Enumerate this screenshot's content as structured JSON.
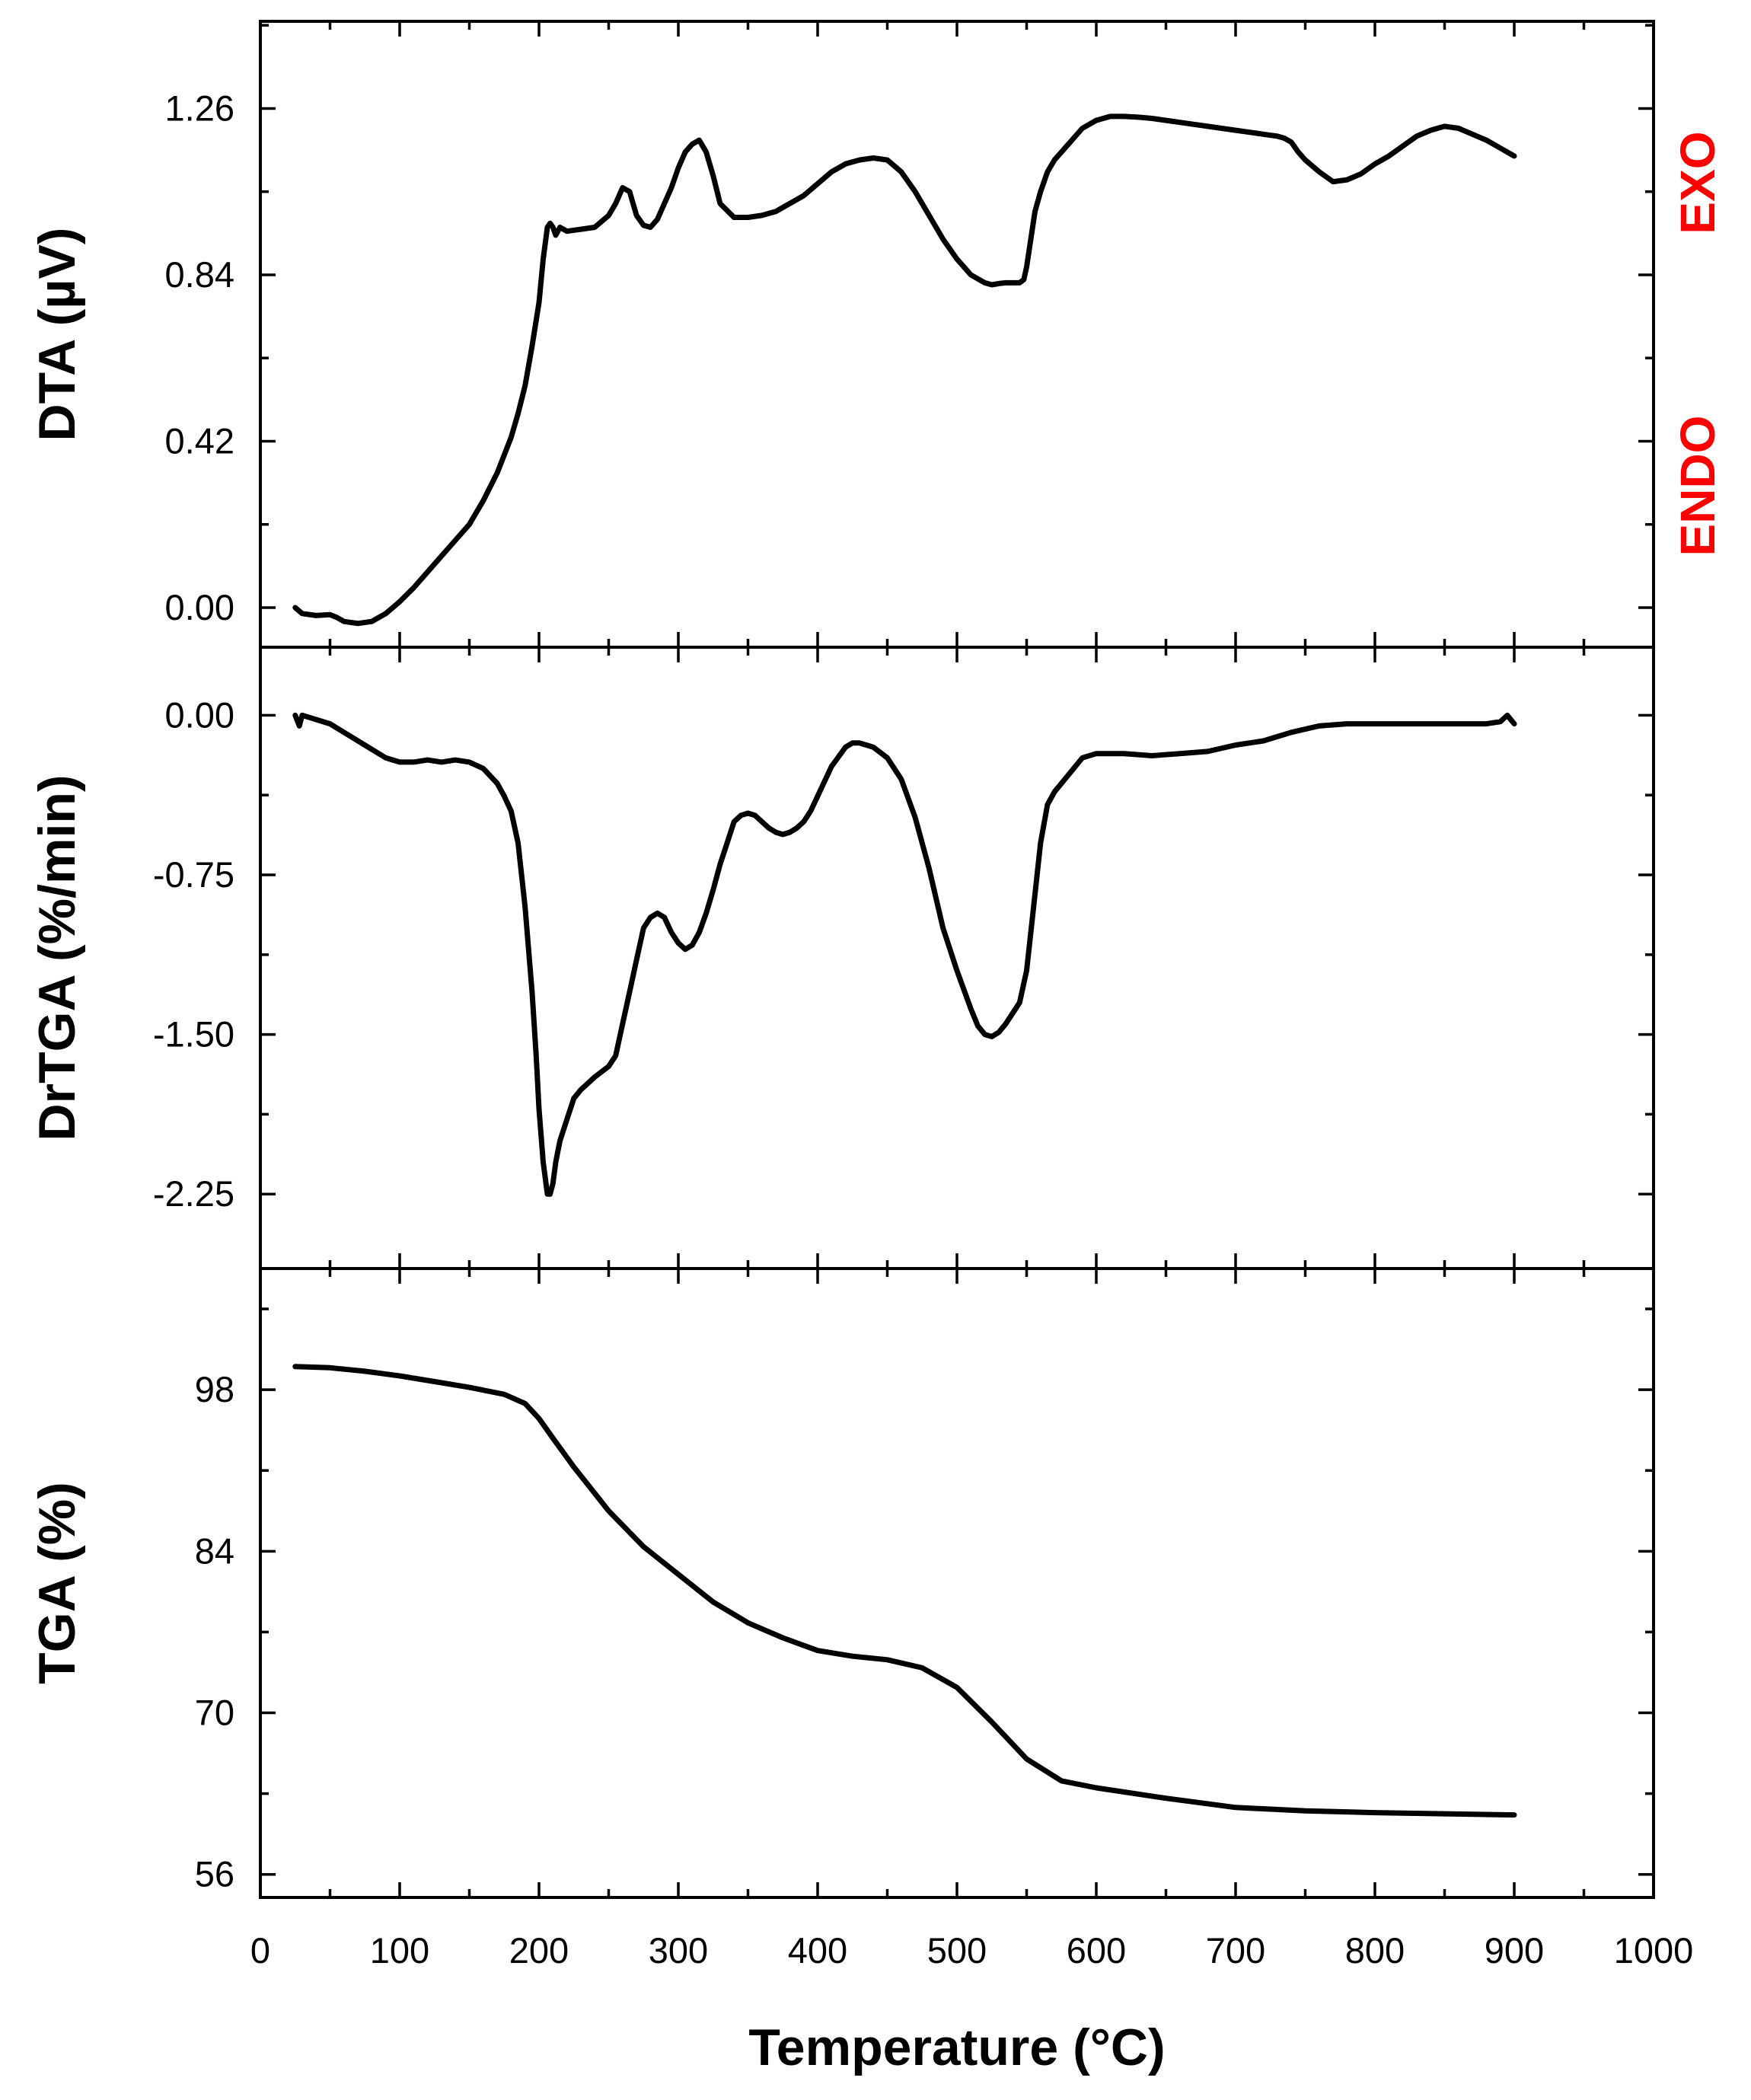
{
  "chart_data": [
    {
      "type": "line",
      "panel": "top",
      "ylabel": "DTA (µV)",
      "xlim": [
        0,
        1000
      ],
      "ylim": [
        -0.1,
        1.48
      ],
      "yticks": [
        "0.00",
        "0.42",
        "0.84",
        "1.26"
      ],
      "ytick_values": [
        0,
        0.42,
        0.84,
        1.26
      ],
      "annotations": [
        "EXO",
        "ENDO"
      ],
      "annotation_color": "#ff0000",
      "series": [
        {
          "x": [
            25,
            30,
            40,
            50,
            55,
            60,
            70,
            80,
            90,
            100,
            110,
            120,
            130,
            140,
            150,
            160,
            170,
            180,
            185,
            190,
            195,
            200,
            203,
            206,
            208,
            210,
            212,
            215,
            220,
            230,
            240,
            250,
            255,
            260,
            265,
            270,
            275,
            280,
            285,
            290,
            295,
            300,
            305,
            310,
            315,
            320,
            325,
            330,
            340,
            350,
            360,
            370,
            380,
            390,
            400,
            410,
            420,
            430,
            440,
            450,
            460,
            470,
            480,
            490,
            500,
            510,
            520,
            525,
            530,
            535,
            540,
            545,
            548,
            550,
            553,
            556,
            560,
            565,
            570,
            580,
            590,
            600,
            610,
            620,
            630,
            640,
            650,
            660,
            670,
            680,
            690,
            700,
            710,
            720,
            730,
            735,
            740,
            745,
            750,
            760,
            770,
            780,
            790,
            800,
            810,
            820,
            830,
            840,
            850,
            860,
            870,
            880,
            890,
            900
          ],
          "y": [
            0.0,
            -0.015,
            -0.02,
            -0.018,
            -0.025,
            -0.035,
            -0.04,
            -0.035,
            -0.015,
            0.015,
            0.05,
            0.09,
            0.13,
            0.17,
            0.21,
            0.27,
            0.34,
            0.43,
            0.49,
            0.56,
            0.66,
            0.77,
            0.88,
            0.96,
            0.97,
            0.96,
            0.94,
            0.96,
            0.95,
            0.955,
            0.96,
            0.99,
            1.02,
            1.06,
            1.05,
            0.99,
            0.965,
            0.96,
            0.98,
            1.02,
            1.06,
            1.11,
            1.15,
            1.17,
            1.18,
            1.15,
            1.09,
            1.02,
            0.985,
            0.985,
            0.99,
            1.0,
            1.02,
            1.04,
            1.07,
            1.1,
            1.12,
            1.13,
            1.135,
            1.13,
            1.1,
            1.05,
            0.99,
            0.93,
            0.88,
            0.84,
            0.82,
            0.815,
            0.818,
            0.82,
            0.82,
            0.82,
            0.828,
            0.86,
            0.93,
            1.0,
            1.05,
            1.1,
            1.13,
            1.17,
            1.21,
            1.23,
            1.24,
            1.24,
            1.238,
            1.235,
            1.23,
            1.225,
            1.22,
            1.215,
            1.21,
            1.205,
            1.2,
            1.195,
            1.19,
            1.185,
            1.175,
            1.15,
            1.13,
            1.1,
            1.075,
            1.08,
            1.095,
            1.12,
            1.14,
            1.165,
            1.19,
            1.205,
            1.215,
            1.21,
            1.195,
            1.18,
            1.16,
            1.14
          ]
        }
      ]
    },
    {
      "type": "line",
      "panel": "middle",
      "ylabel": "DrTGA (%/min)",
      "xlim": [
        0,
        1000
      ],
      "ylim": [
        -2.6,
        0.32
      ],
      "yticks": [
        "0.00",
        "-0.75",
        "-1.50",
        "-2.25"
      ],
      "ytick_values": [
        0,
        -0.75,
        -1.5,
        -2.25
      ],
      "series": [
        {
          "x": [
            25,
            28,
            30,
            35,
            40,
            50,
            60,
            70,
            80,
            90,
            100,
            110,
            120,
            130,
            140,
            150,
            160,
            170,
            175,
            180,
            185,
            190,
            195,
            198,
            200,
            203,
            206,
            208,
            210,
            212,
            215,
            220,
            225,
            230,
            240,
            250,
            255,
            260,
            265,
            270,
            275,
            280,
            285,
            290,
            295,
            300,
            305,
            310,
            315,
            320,
            325,
            330,
            335,
            340,
            345,
            350,
            355,
            360,
            365,
            370,
            375,
            380,
            385,
            390,
            395,
            400,
            410,
            420,
            425,
            430,
            440,
            450,
            460,
            470,
            480,
            490,
            500,
            510,
            515,
            520,
            525,
            530,
            535,
            540,
            545,
            550,
            555,
            560,
            565,
            570,
            580,
            590,
            600,
            620,
            640,
            660,
            680,
            700,
            720,
            740,
            760,
            780,
            800,
            820,
            840,
            860,
            880,
            890,
            895,
            900
          ],
          "y": [
            0.0,
            -0.05,
            0.0,
            -0.01,
            -0.02,
            -0.04,
            -0.08,
            -0.12,
            -0.16,
            -0.2,
            -0.22,
            -0.22,
            -0.21,
            -0.22,
            -0.21,
            -0.22,
            -0.25,
            -0.32,
            -0.38,
            -0.45,
            -0.6,
            -0.9,
            -1.3,
            -1.6,
            -1.85,
            -2.1,
            -2.25,
            -2.25,
            -2.2,
            -2.1,
            -2.0,
            -1.9,
            -1.8,
            -1.76,
            -1.7,
            -1.65,
            -1.6,
            -1.45,
            -1.3,
            -1.15,
            -1.0,
            -0.95,
            -0.93,
            -0.95,
            -1.02,
            -1.07,
            -1.1,
            -1.08,
            -1.02,
            -0.93,
            -0.82,
            -0.7,
            -0.6,
            -0.5,
            -0.47,
            -0.46,
            -0.47,
            -0.5,
            -0.53,
            -0.55,
            -0.56,
            -0.55,
            -0.53,
            -0.5,
            -0.45,
            -0.38,
            -0.24,
            -0.15,
            -0.13,
            -0.13,
            -0.15,
            -0.2,
            -0.3,
            -0.48,
            -0.72,
            -1.0,
            -1.2,
            -1.38,
            -1.46,
            -1.5,
            -1.51,
            -1.49,
            -1.45,
            -1.4,
            -1.35,
            -1.2,
            -0.9,
            -0.6,
            -0.42,
            -0.36,
            -0.28,
            -0.2,
            -0.18,
            -0.18,
            -0.19,
            -0.18,
            -0.17,
            -0.14,
            -0.12,
            -0.08,
            -0.05,
            -0.04,
            -0.04,
            -0.04,
            -0.04,
            -0.04,
            -0.04,
            -0.03,
            -0.0,
            -0.04
          ]
        }
      ]
    },
    {
      "type": "line",
      "panel": "bottom",
      "ylabel": "TGA (%)",
      "xlabel": "Temperature (°C)",
      "xlim": [
        0,
        1000
      ],
      "xticks": [
        "0",
        "100",
        "200",
        "300",
        "400",
        "500",
        "600",
        "700",
        "800",
        "900",
        "1000"
      ],
      "xtick_values": [
        0,
        100,
        200,
        300,
        400,
        500,
        600,
        700,
        800,
        900,
        1000
      ],
      "ylim": [
        54,
        108.5
      ],
      "yticks": [
        "56",
        "70",
        "84",
        "98"
      ],
      "ytick_values": [
        56,
        70,
        84,
        98
      ],
      "series": [
        {
          "x": [
            25,
            50,
            75,
            100,
            125,
            150,
            175,
            190,
            200,
            210,
            225,
            250,
            275,
            300,
            325,
            350,
            375,
            400,
            425,
            450,
            475,
            500,
            525,
            550,
            575,
            600,
            650,
            700,
            750,
            800,
            850,
            900
          ],
          "y": [
            100.0,
            99.9,
            99.6,
            99.2,
            98.7,
            98.2,
            97.6,
            96.8,
            95.5,
            93.8,
            91.3,
            87.5,
            84.4,
            82.0,
            79.6,
            77.8,
            76.5,
            75.4,
            74.9,
            74.6,
            73.9,
            72.2,
            69.2,
            66.0,
            64.1,
            63.5,
            62.6,
            61.8,
            61.5,
            61.35,
            61.25,
            61.15
          ]
        }
      ]
    }
  ]
}
